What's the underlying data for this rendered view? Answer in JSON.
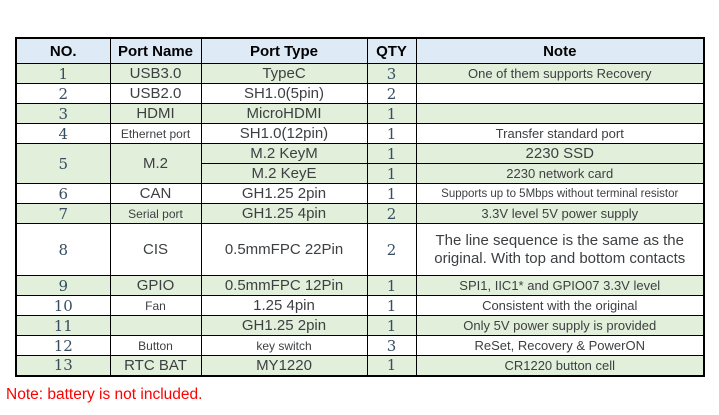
{
  "table": {
    "columns": [
      "NO.",
      "Port Name",
      "Port Type",
      "QTY",
      "Note"
    ],
    "rows": [
      {
        "no": "1",
        "name": "USB3.0",
        "type": "TypeC",
        "qty": "3",
        "note": "One of them supports Recovery"
      },
      {
        "no": "2",
        "name": "USB2.0",
        "type": "SH1.0(5pin)",
        "qty": "2",
        "note": ""
      },
      {
        "no": "3",
        "name": "HDMI",
        "type": "MicroHDMI",
        "qty": "1",
        "note": ""
      },
      {
        "no": "4",
        "name": "Ethernet port",
        "type": "SH1.0(12pin)",
        "qty": "1",
        "note": "Transfer standard port"
      },
      {
        "no": "5",
        "name": "M.2",
        "sub": [
          {
            "type": "M.2 KeyM",
            "qty": "1",
            "note": "2230 SSD"
          },
          {
            "type": "M.2 KeyE",
            "qty": "1",
            "note": "2230 network card"
          }
        ]
      },
      {
        "no": "6",
        "name": "CAN",
        "type": "GH1.25 2pin",
        "qty": "1",
        "note": "Supports up to 5Mbps without terminal resistor"
      },
      {
        "no": "7",
        "name": "Serial port",
        "type": "GH1.25 4pin",
        "qty": "2",
        "note": "3.3V level 5V power supply"
      },
      {
        "no": "8",
        "name": "CIS",
        "type": "0.5mmFPC 22Pin",
        "qty": "2",
        "note": "The line sequence is the same as the original. With top and bottom contacts"
      },
      {
        "no": "9",
        "name": "GPIO",
        "type": "0.5mmFPC 12Pin",
        "qty": "1",
        "note": "SPI1, IIC1* and GPIO07 3.3V level"
      },
      {
        "no": "10",
        "name": "Fan",
        "type": "1.25 4pin",
        "qty": "1",
        "note": "Consistent with the original"
      },
      {
        "no": "11",
        "name": "",
        "type": "GH1.25 2pin",
        "qty": "1",
        "note": "Only 5V power supply is provided"
      },
      {
        "no": "12",
        "name": "Button",
        "type": "key switch",
        "qty": "3",
        "note": "ReSet, Recovery & PowerON"
      },
      {
        "no": "13",
        "name": "RTC BAT",
        "type": "MY1220",
        "qty": "1",
        "note": "CR1220 button cell"
      }
    ]
  },
  "footnote": "Note: battery is not included.",
  "colors": {
    "row_highlight_green": "#e2efda",
    "header_blue": "#deeaf6",
    "footnote_red": "#ff0000",
    "border_black": "#000000"
  }
}
